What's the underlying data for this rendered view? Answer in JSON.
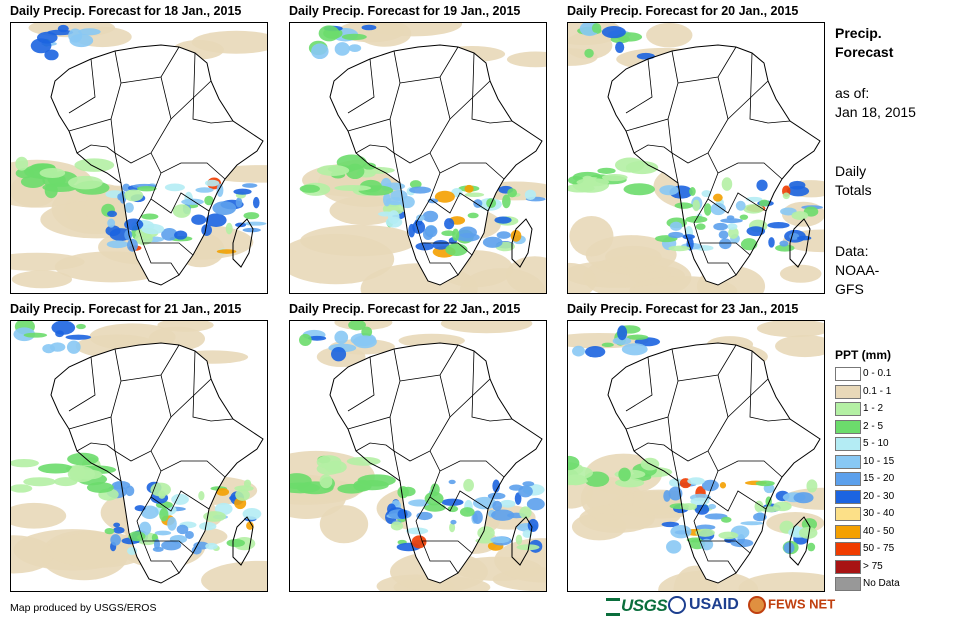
{
  "panels": [
    {
      "title": "Daily Precip. Forecast for 18 Jan., 2015"
    },
    {
      "title": "Daily Precip. Forecast for 19 Jan., 2015"
    },
    {
      "title": "Daily Precip. Forecast for 20 Jan., 2015"
    },
    {
      "title": "Daily Precip. Forecast for 21 Jan., 2015"
    },
    {
      "title": "Daily Precip. Forecast for 22 Jan., 2015"
    },
    {
      "title": "Daily Precip. Forecast for 23 Jan., 2015"
    }
  ],
  "sidebar": {
    "title_line1": "Precip.",
    "title_line2": "Forecast",
    "asof_line1": "as of:",
    "asof_line2": "Jan 18, 2015",
    "daily_line1": "Daily",
    "daily_line2": "Totals",
    "data_line1": "Data:",
    "data_line2": "NOAA-",
    "data_line3": "GFS"
  },
  "legend": {
    "title": "PPT (mm)",
    "items": [
      {
        "label": "0 - 0.1",
        "color": "#ffffff"
      },
      {
        "label": "0.1 - 1",
        "color": "#e8d8b8"
      },
      {
        "label": "1 - 2",
        "color": "#b4f0a4"
      },
      {
        "label": "2 - 5",
        "color": "#6cdc6c"
      },
      {
        "label": "5 - 10",
        "color": "#b4ecf4"
      },
      {
        "label": "10 - 15",
        "color": "#88c8f4"
      },
      {
        "label": "15 - 20",
        "color": "#5ca0ec"
      },
      {
        "label": "20 - 30",
        "color": "#1c64e0"
      },
      {
        "label": "30 - 40",
        "color": "#fce088"
      },
      {
        "label": "40 - 50",
        "color": "#f4a000"
      },
      {
        "label": "50 - 75",
        "color": "#f03c00"
      },
      {
        "label": "> 75",
        "color": "#a81414"
      },
      {
        "label": "No Data",
        "color": "#989898"
      }
    ]
  },
  "credit": "Map produced by USGS/EROS",
  "logos": {
    "usgs": "USGS",
    "usaid": "USAID",
    "fews": "FEWS NET"
  }
}
